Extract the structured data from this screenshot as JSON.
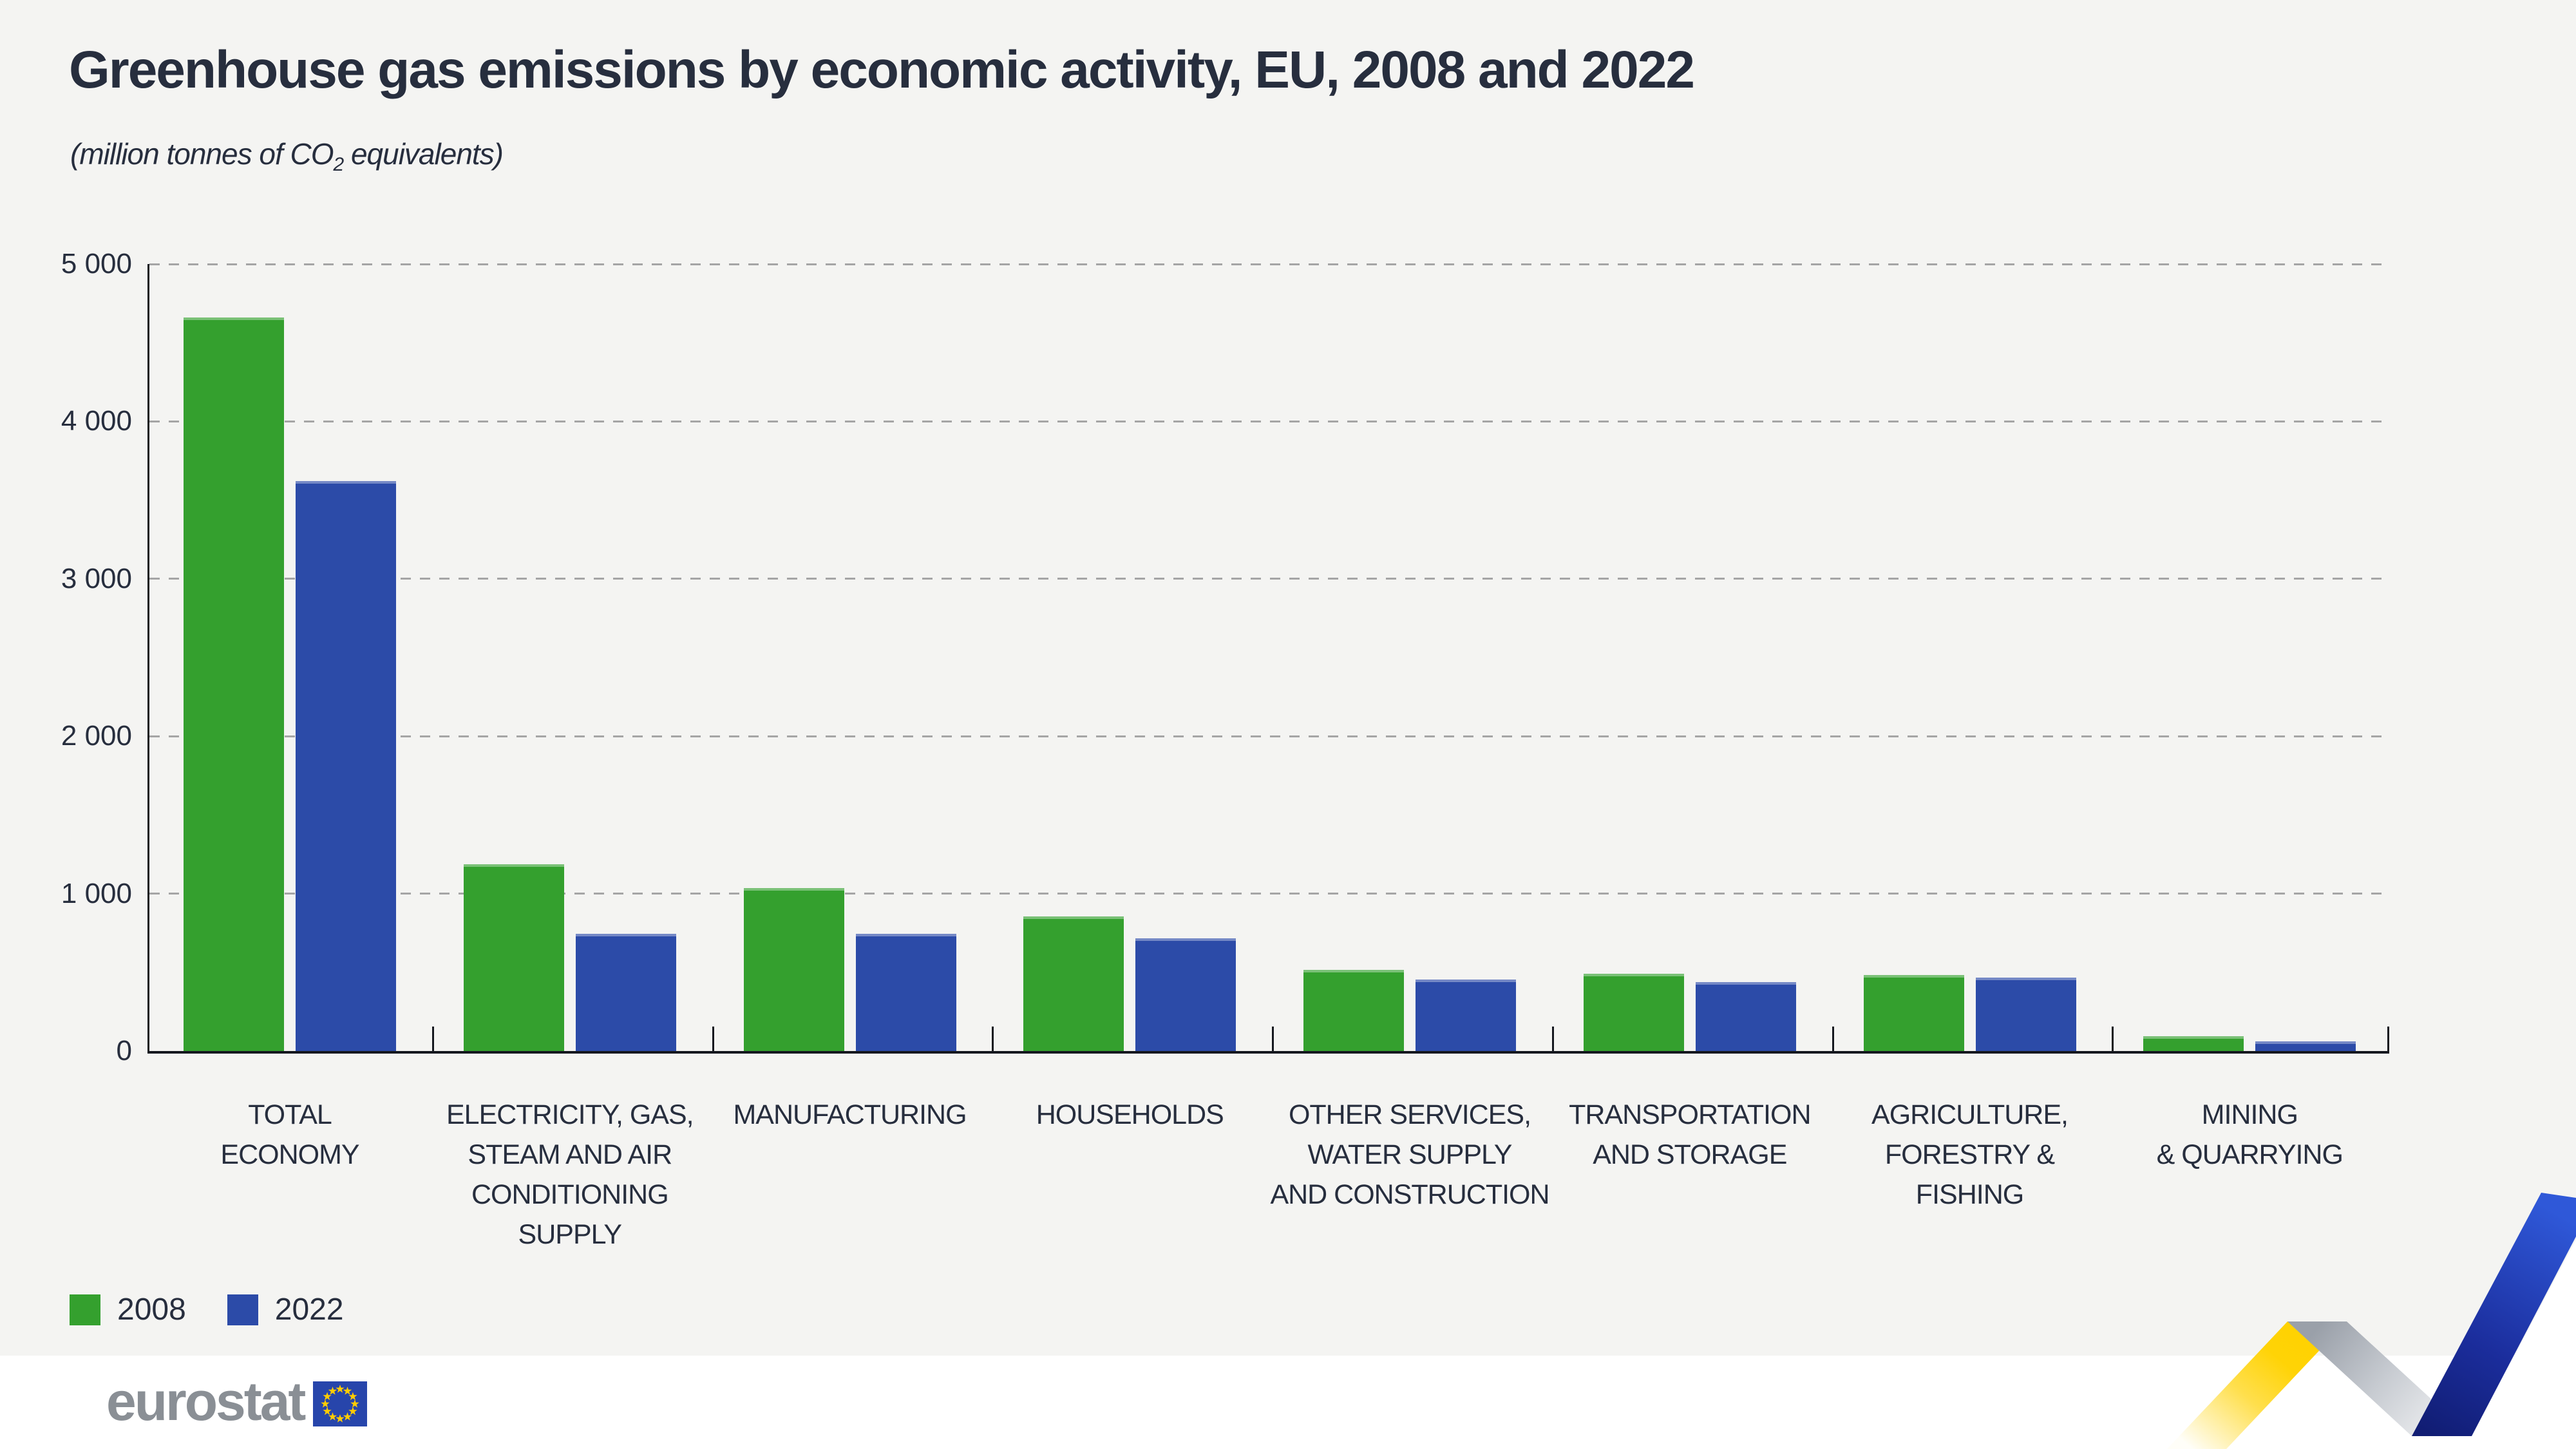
{
  "title": "Greenhouse gas emissions by economic activity, EU, 2008 and 2022",
  "subtitle_prefix": "(million tonnes of CO",
  "subtitle_sub": "2",
  "subtitle_suffix": " equivalents)",
  "logo_text": "eurostat",
  "colors": {
    "background": "#f4f4f2",
    "green_2008": "#34a02e",
    "blue_2022": "#2c4ba8",
    "text_dark": "#272e3e",
    "axis": "#15181f",
    "gridline": "#a5a5a5",
    "logo_gray": "#8a8f95",
    "eu_flag_blue": "#2745ab",
    "eu_flag_stars": "#ffcc00",
    "ribbon_yellow": "#ffd200",
    "ribbon_blue": "#2f58d8"
  },
  "chart_data": {
    "type": "bar",
    "title": "Greenhouse gas emissions by economic activity, EU, 2008 and 2022",
    "unit": "(million tonnes of CO2 equivalents)",
    "categories": [
      [
        "TOTAL",
        "ECONOMY"
      ],
      [
        "ELECTRICITY, GAS,",
        "STEAM AND AIR",
        "CONDITIONING SUPPLY"
      ],
      [
        "MANUFACTURING"
      ],
      [
        "HOUSEHOLDS"
      ],
      [
        "OTHER SERVICES,",
        "WATER SUPPLY",
        "AND CONSTRUCTION"
      ],
      [
        "TRANSPORTATION",
        "AND STORAGE"
      ],
      [
        "AGRICULTURE,",
        "FORESTRY & FISHING"
      ],
      [
        "MINING",
        "& QUARRYING"
      ]
    ],
    "series": [
      {
        "name": "2008",
        "color": "#34a02e",
        "values": [
          4660,
          1185,
          1035,
          855,
          515,
          490,
          485,
          95
        ]
      },
      {
        "name": "2022",
        "color": "#2c4ba8",
        "values": [
          3620,
          745,
          745,
          715,
          455,
          440,
          465,
          60
        ]
      }
    ],
    "ylim": [
      0,
      5000
    ],
    "yticks": [
      "5 000",
      "4 000",
      "3 000",
      "2 000",
      "1 000",
      "0"
    ],
    "grid": "horizontal dashed",
    "legend_position": "bottom-left"
  }
}
